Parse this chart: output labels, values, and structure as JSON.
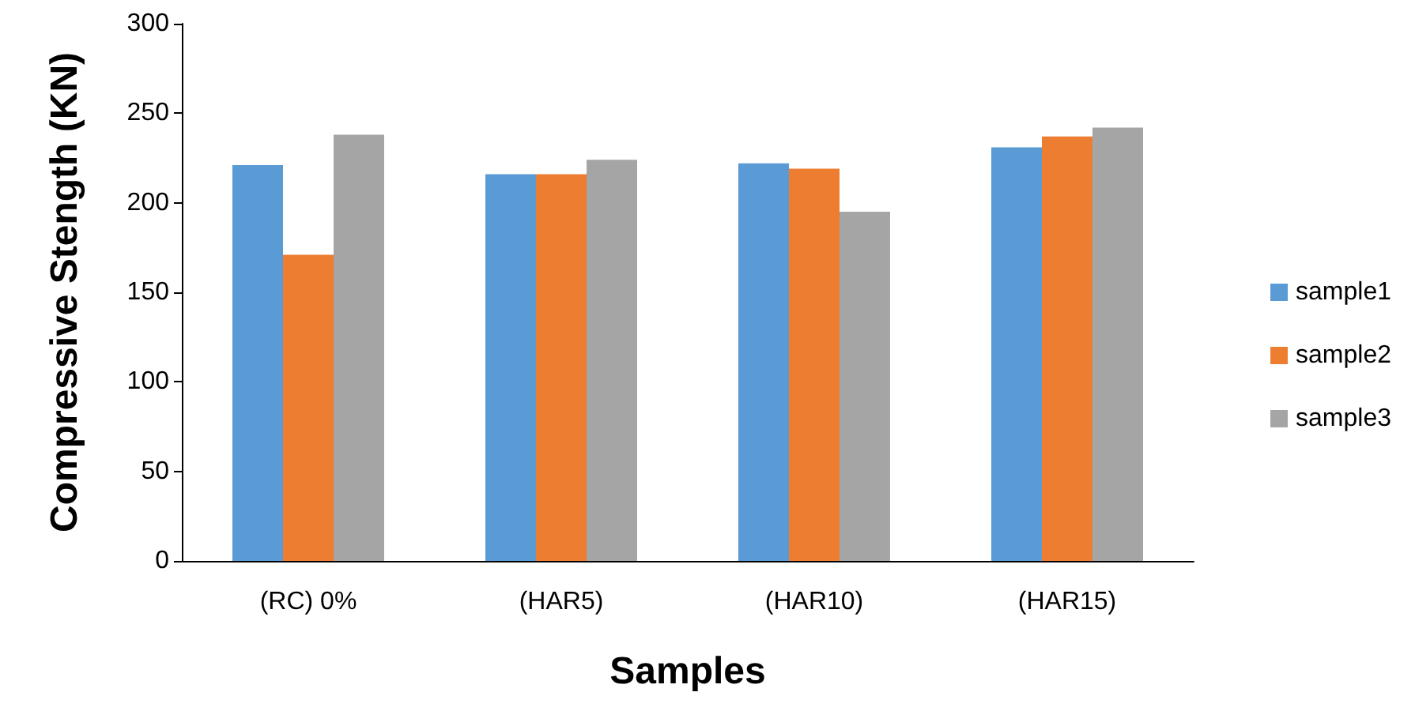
{
  "chart_data": {
    "type": "bar",
    "xlabel": "Samples",
    "ylabel": "Compressive Stength (KN)",
    "categories": [
      "(RC) 0%",
      "(HAR5)",
      "(HAR10)",
      "(HAR15)"
    ],
    "series": [
      {
        "name": "sample1",
        "color": "#5b9bd5",
        "values": [
          221,
          216,
          222,
          231
        ]
      },
      {
        "name": "sample2",
        "color": "#ed7d31",
        "values": [
          171,
          216,
          219,
          237
        ]
      },
      {
        "name": "sample3",
        "color": "#a5a5a5",
        "values": [
          238,
          224,
          195,
          242
        ]
      }
    ],
    "ylim": [
      0,
      300
    ],
    "yticks": [
      0,
      50,
      100,
      150,
      200,
      250,
      300
    ],
    "grid": false,
    "legend": "right"
  }
}
